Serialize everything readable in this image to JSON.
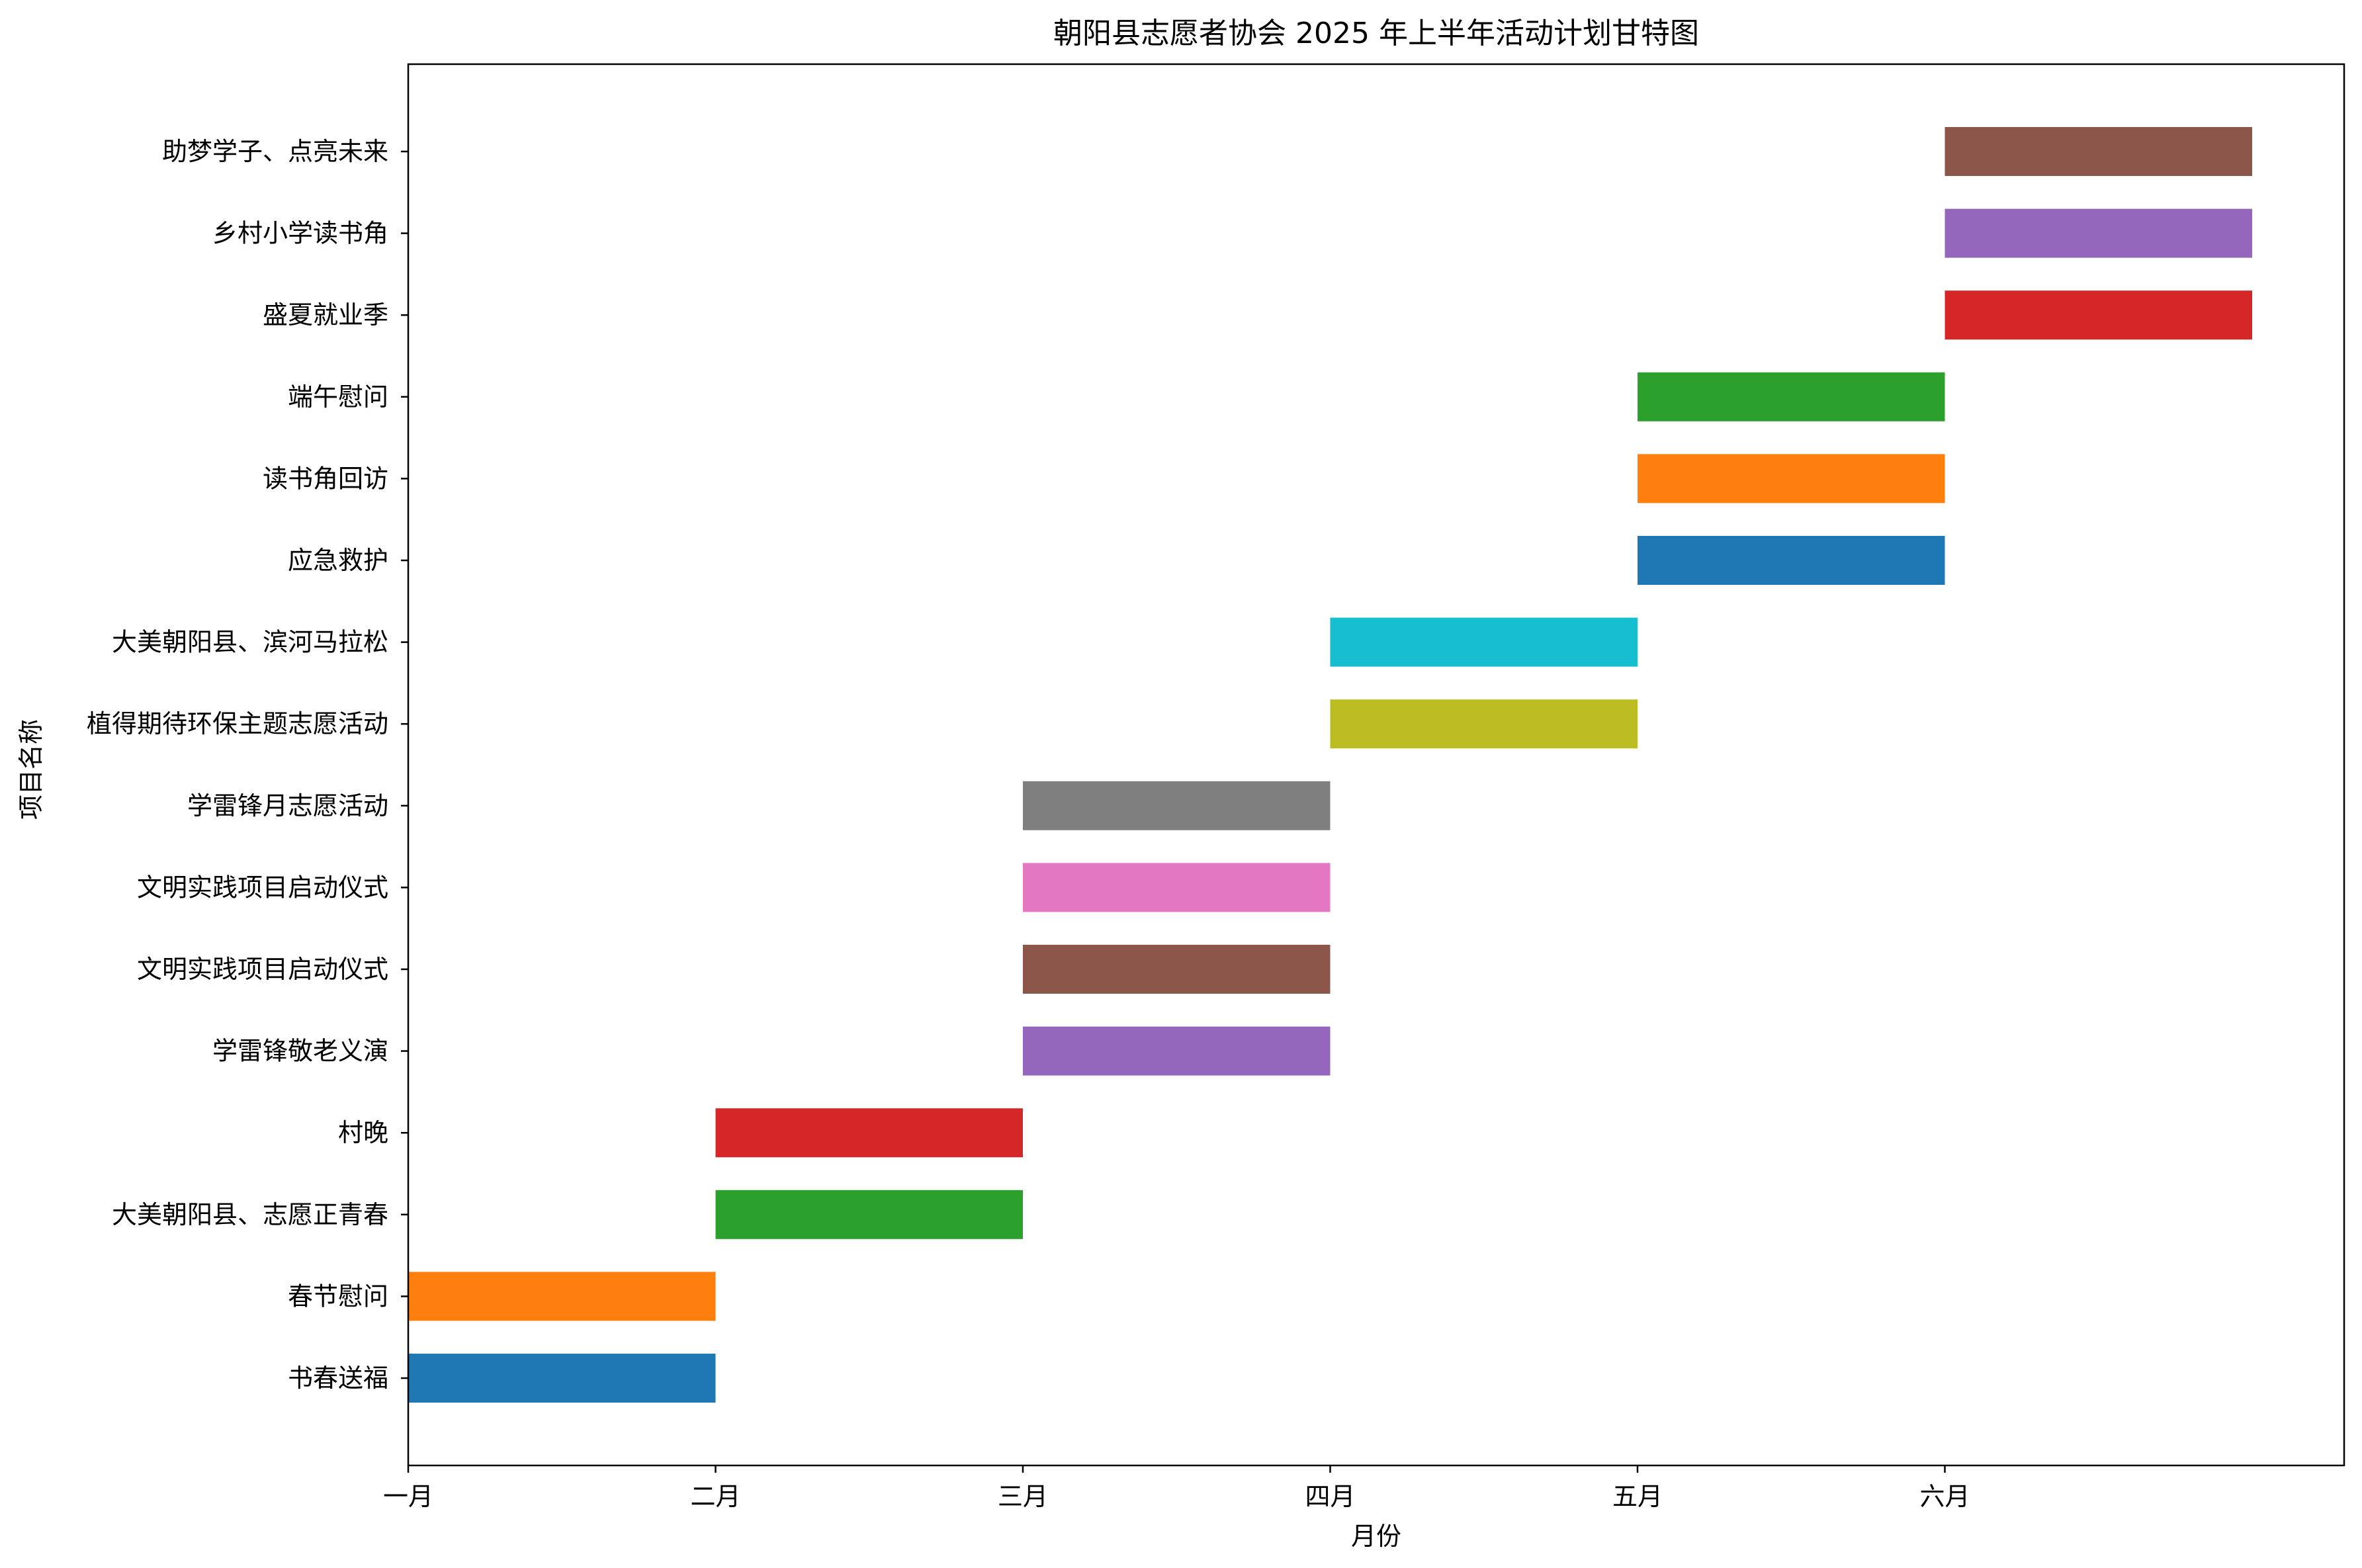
{
  "chart_data": {
    "type": "gantt",
    "title": "朝阳县志愿者协会 2025 年上半年活动计划甘特图",
    "xlabel": "月份",
    "ylabel": "项目名称",
    "x_ticks": [
      "一月",
      "二月",
      "三月",
      "四月",
      "五月",
      "六月"
    ],
    "xlim": [
      0,
      6.3
    ],
    "grid": false,
    "tasks": [
      {
        "name": "书春送福",
        "start": 0,
        "end": 1,
        "color": "#1f77b4"
      },
      {
        "name": "春节慰问",
        "start": 0,
        "end": 1,
        "color": "#ff7f0e"
      },
      {
        "name": "大美朝阳县、志愿正青春",
        "start": 1,
        "end": 2,
        "color": "#2ca02c"
      },
      {
        "name": "村晚",
        "start": 1,
        "end": 2,
        "color": "#d62728"
      },
      {
        "name": "学雷锋敬老义演",
        "start": 2,
        "end": 3,
        "color": "#9467bd"
      },
      {
        "name": "文明实践项目启动仪式",
        "start": 2,
        "end": 3,
        "color": "#8c564b"
      },
      {
        "name": "文明实践项目启动仪式",
        "start": 2,
        "end": 3,
        "color": "#e377c2"
      },
      {
        "name": "学雷锋月志愿活动",
        "start": 2,
        "end": 3,
        "color": "#7f7f7f"
      },
      {
        "name": "植得期待环保主题志愿活动",
        "start": 3,
        "end": 4,
        "color": "#bcbd22"
      },
      {
        "name": "大美朝阳县、滨河马拉松",
        "start": 3,
        "end": 4,
        "color": "#17becf"
      },
      {
        "name": "应急救护",
        "start": 4,
        "end": 5,
        "color": "#1f77b4"
      },
      {
        "name": "读书角回访",
        "start": 4,
        "end": 5,
        "color": "#ff7f0e"
      },
      {
        "name": "端午慰问",
        "start": 4,
        "end": 5,
        "color": "#2ca02c"
      },
      {
        "name": "盛夏就业季",
        "start": 5,
        "end": 6,
        "color": "#d62728"
      },
      {
        "name": "乡村小学读书角",
        "start": 5,
        "end": 6,
        "color": "#9467bd"
      },
      {
        "name": "助梦学子、点亮未来",
        "start": 5,
        "end": 6,
        "color": "#8c564b"
      }
    ]
  }
}
